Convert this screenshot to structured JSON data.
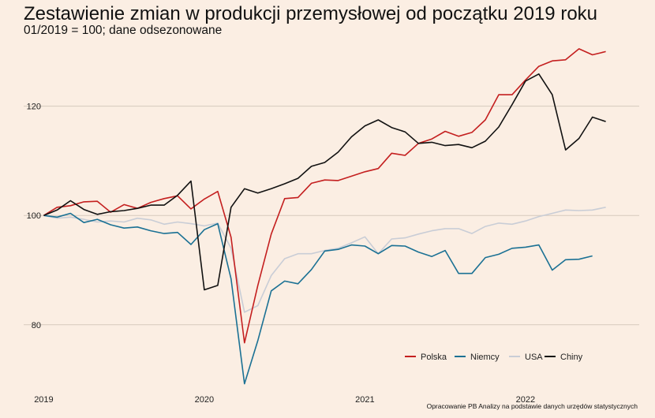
{
  "chart_data": {
    "type": "line",
    "title": "Zestawienie zmian w produkcji przemysłowej od początku 2019 roku",
    "subtitle": "01/2019 = 100; dane odsezonowane",
    "xlabel": "",
    "ylabel": "",
    "x_ticks": [
      {
        "label": "2019",
        "month": 0
      },
      {
        "label": "2020",
        "month": 12
      },
      {
        "label": "2021",
        "month": 24
      },
      {
        "label": "2022",
        "month": 36
      }
    ],
    "y_ticks": [
      80,
      100,
      120
    ],
    "ylim": [
      69,
      131.5
    ],
    "xlim": [
      -1.5,
      44.5
    ],
    "grid": "horizontal",
    "legend_position": "bottom-right",
    "series": [
      {
        "name": "Polska",
        "color": "#c41f1f",
        "values": [
          100,
          101.5,
          101.8,
          102.5,
          102.6,
          100.6,
          102.0,
          101.3,
          102.4,
          103.1,
          103.6,
          101.2,
          103.0,
          104.4,
          96.0,
          76.7,
          87.2,
          96.6,
          103.1,
          103.3,
          105.9,
          106.5,
          106.4,
          107.2,
          108.0,
          108.6,
          111.4,
          111.0,
          113.2,
          114.0,
          115.4,
          114.5,
          115.2,
          117.5,
          122.1,
          122.1,
          124.8,
          127.3,
          128.3,
          128.5,
          130.5,
          129.4,
          130.0
        ]
      },
      {
        "name": "Niemcy",
        "color": "#1b7194",
        "values": [
          100,
          99.7,
          100.4,
          98.7,
          99.3,
          98.3,
          97.7,
          97.9,
          97.2,
          96.7,
          96.9,
          94.7,
          97.4,
          98.5,
          88.4,
          69.2,
          77.1,
          86.2,
          88.0,
          87.5,
          90.1,
          93.5,
          93.8,
          94.6,
          94.4,
          93.0,
          94.5,
          94.4,
          93.3,
          92.5,
          93.6,
          89.4,
          89.4,
          92.3,
          92.9,
          94.0,
          94.2,
          94.6,
          90.0,
          91.9,
          92.0,
          92.6,
          null
        ]
      },
      {
        "name": "USA",
        "color": "#c9cdd6",
        "values": [
          100,
          99.5,
          99.7,
          99.3,
          98.8,
          99.0,
          98.8,
          99.5,
          99.2,
          98.4,
          98.8,
          98.5,
          98.1,
          98.6,
          94.0,
          82.3,
          83.5,
          89.0,
          92.1,
          93.0,
          93.0,
          93.6,
          94.0,
          95.0,
          96.1,
          93.0,
          95.7,
          95.9,
          96.6,
          97.2,
          97.6,
          97.6,
          96.7,
          98.0,
          98.6,
          98.4,
          99.0,
          99.8,
          100.4,
          101.0,
          100.9,
          101.0,
          101.5
        ]
      },
      {
        "name": "Chiny",
        "color": "#111111",
        "values": [
          100,
          101.0,
          102.7,
          101.1,
          100.2,
          100.7,
          100.9,
          101.3,
          101.9,
          101.9,
          103.7,
          106.3,
          86.4,
          87.2,
          101.5,
          104.9,
          104.1,
          104.9,
          105.8,
          106.8,
          109.0,
          109.7,
          111.6,
          114.4,
          116.4,
          117.5,
          116.1,
          115.3,
          113.2,
          113.4,
          112.8,
          113.0,
          112.4,
          113.6,
          116.2,
          120.3,
          124.6,
          125.9,
          122.1,
          112.0,
          114.1,
          118.0,
          117.2
        ]
      }
    ]
  },
  "source_note": "Opracowanie PB Analizy na podstawie danych urzędów statystycznych"
}
